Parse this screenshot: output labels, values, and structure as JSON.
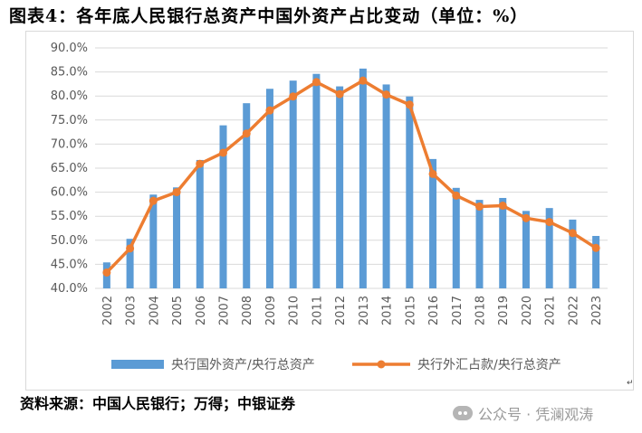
{
  "title": "图表4：各年底人民银行总资产中国外资产占比变动（单位：%）",
  "source": "资料来源：中国人民银行；万得；中银证券",
  "watermark": "公众号 · 凭澜观涛",
  "paragraph_mark": "↵",
  "colors": {
    "bar": "#5b9bd5",
    "line": "#ed7d31",
    "grid": "#d9d9d9",
    "text": "#595959"
  },
  "chart_data": {
    "type": "bar+line",
    "title": "各年底人民银行总资产中国外资产占比变动（单位：%）",
    "categories": [
      "2002",
      "2003",
      "2004",
      "2005",
      "2006",
      "2007",
      "2008",
      "2009",
      "2010",
      "2011",
      "2012",
      "2013",
      "2014",
      "2015",
      "2016",
      "2017",
      "2018",
      "2019",
      "2020",
      "2021",
      "2022",
      "2023"
    ],
    "ylim": [
      40,
      90
    ],
    "yticks": [
      "40.0%",
      "45.0%",
      "50.0%",
      "55.0%",
      "60.0%",
      "65.0%",
      "70.0%",
      "75.0%",
      "80.0%",
      "85.0%",
      "90.0%"
    ],
    "grid": true,
    "legend_position": "bottom",
    "series": [
      {
        "name": "央行国外资产/央行总资产",
        "kind": "bar",
        "values": [
          45.4,
          50.3,
          59.5,
          61.0,
          66.7,
          73.9,
          78.5,
          81.5,
          83.2,
          84.6,
          82.0,
          85.7,
          82.4,
          79.9,
          66.9,
          60.9,
          58.4,
          58.8,
          56.1,
          56.7,
          54.3,
          50.9
        ]
      },
      {
        "name": "央行外汇占款/央行总资产",
        "kind": "line",
        "values": [
          43.3,
          48.3,
          58.2,
          60.0,
          65.9,
          68.2,
          72.2,
          77.0,
          79.9,
          82.9,
          80.4,
          83.2,
          80.3,
          78.2,
          63.8,
          59.3,
          57.0,
          57.2,
          54.6,
          53.8,
          51.5,
          48.4
        ]
      }
    ]
  }
}
